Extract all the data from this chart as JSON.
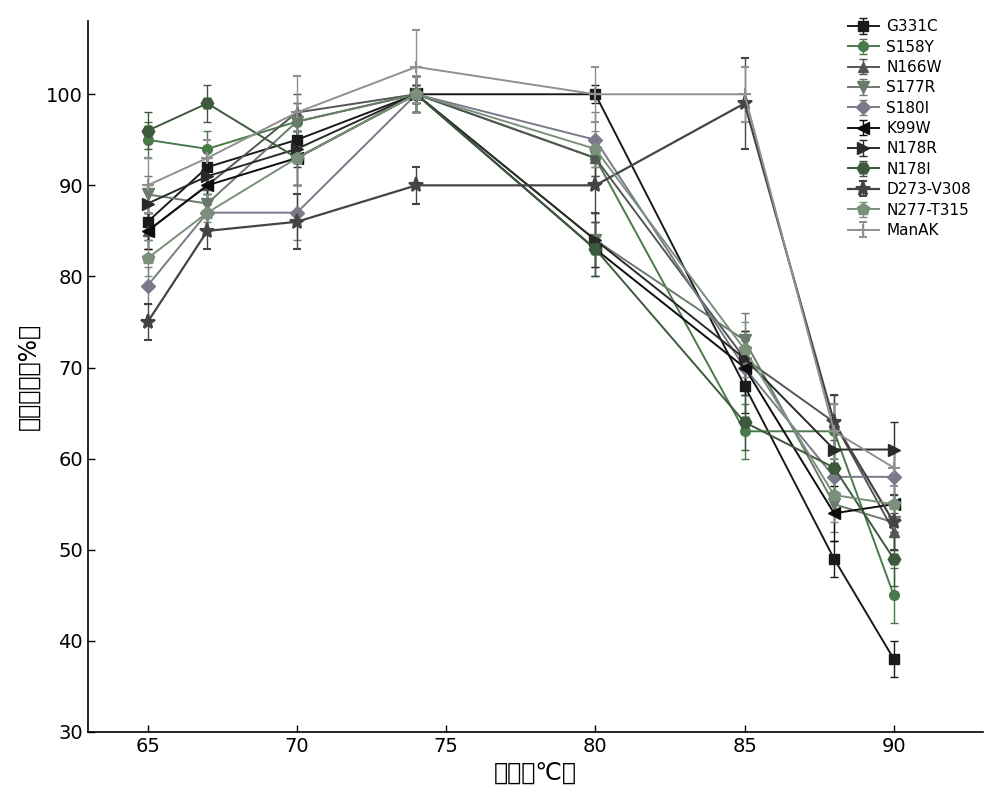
{
  "x": [
    65,
    67,
    70,
    74,
    80,
    85,
    88,
    90
  ],
  "series": [
    {
      "label": "G331C",
      "color": "#1a1a1a",
      "marker": "s",
      "markersize": 7,
      "linewidth": 1.4,
      "linestyle": "-",
      "y": [
        86,
        92,
        95,
        100,
        100,
        68,
        49,
        38
      ],
      "yerr": [
        2,
        2,
        2,
        1,
        1,
        3,
        2,
        2
      ]
    },
    {
      "label": "S158Y",
      "color": "#4a7a4a",
      "marker": "o",
      "markersize": 7,
      "linewidth": 1.4,
      "linestyle": "-",
      "y": [
        95,
        94,
        97,
        100,
        93,
        63,
        63,
        45
      ],
      "yerr": [
        2,
        2,
        2,
        1,
        2,
        3,
        3,
        3
      ]
    },
    {
      "label": "N166W",
      "color": "#555555",
      "marker": "^",
      "markersize": 7,
      "linewidth": 1.4,
      "linestyle": "-",
      "y": [
        85,
        90,
        98,
        100,
        93,
        71,
        64,
        52
      ],
      "yerr": [
        2,
        2,
        2,
        1,
        2,
        3,
        3,
        2
      ]
    },
    {
      "label": "S177R",
      "color": "#6b7b6b",
      "marker": "v",
      "markersize": 8,
      "linewidth": 1.4,
      "linestyle": "-",
      "y": [
        89,
        88,
        97,
        100,
        84,
        73,
        55,
        53
      ],
      "yerr": [
        2,
        2,
        2,
        2,
        3,
        3,
        3,
        3
      ]
    },
    {
      "label": "S180I",
      "color": "#7a7a8a",
      "marker": "D",
      "markersize": 7,
      "linewidth": 1.4,
      "linestyle": "-",
      "y": [
        79,
        87,
        87,
        100,
        95,
        70,
        58,
        58
      ],
      "yerr": [
        2,
        2,
        3,
        2,
        3,
        3,
        3,
        3
      ]
    },
    {
      "label": "K99W",
      "color": "#0d0d0d",
      "marker": "<",
      "markersize": 8,
      "linewidth": 1.4,
      "linestyle": "-",
      "y": [
        85,
        90,
        93,
        100,
        83,
        70,
        54,
        55
      ],
      "yerr": [
        2,
        2,
        3,
        2,
        3,
        3,
        3,
        3
      ]
    },
    {
      "label": "N178R",
      "color": "#2a2a2a",
      "marker": ">",
      "markersize": 8,
      "linewidth": 1.4,
      "linestyle": "-",
      "y": [
        88,
        91,
        94,
        100,
        84,
        71,
        61,
        61
      ],
      "yerr": [
        2,
        2,
        2,
        2,
        3,
        3,
        3,
        3
      ]
    },
    {
      "label": "N178I",
      "color": "#3d5a3d",
      "marker": "H",
      "markersize": 9,
      "linewidth": 1.4,
      "linestyle": "-",
      "y": [
        96,
        99,
        93,
        100,
        83,
        64,
        59,
        49
      ],
      "yerr": [
        2,
        2,
        3,
        1,
        3,
        3,
        3,
        3
      ]
    },
    {
      "label": "D273-V308",
      "color": "#444444",
      "marker": "*",
      "markersize": 11,
      "linewidth": 1.6,
      "linestyle": "-",
      "y": [
        75,
        85,
        86,
        90,
        90,
        99,
        64,
        53
      ],
      "yerr": [
        2,
        2,
        3,
        2,
        3,
        5,
        3,
        3
      ]
    },
    {
      "label": "N277-T315",
      "color": "#7a907a",
      "marker": "p",
      "markersize": 9,
      "linewidth": 1.4,
      "linestyle": "-",
      "y": [
        82,
        87,
        93,
        100,
        94,
        72,
        56,
        55
      ],
      "yerr": [
        2,
        2,
        3,
        2,
        2,
        3,
        3,
        3
      ]
    },
    {
      "label": "ManAK",
      "color": "#909090",
      "marker": "P",
      "markersize": 9,
      "linewidth": 1.4,
      "linestyle": "-",
      "y": [
        90,
        93,
        98,
        103,
        100,
        100,
        63,
        59
      ],
      "yerr": [
        3,
        2,
        4,
        4,
        3,
        3,
        3,
        2
      ]
    }
  ],
  "xlabel": "温度（℃）",
  "ylabel": "相对酶活（%）",
  "xlim": [
    63,
    93
  ],
  "ylim": [
    30,
    108
  ],
  "xticks": [
    65,
    70,
    75,
    80,
    85,
    90
  ],
  "yticks": [
    30,
    40,
    50,
    60,
    70,
    80,
    90,
    100
  ],
  "background_color": "#ffffff",
  "legend_fontsize": 11,
  "axis_fontsize": 17,
  "tick_fontsize": 14
}
